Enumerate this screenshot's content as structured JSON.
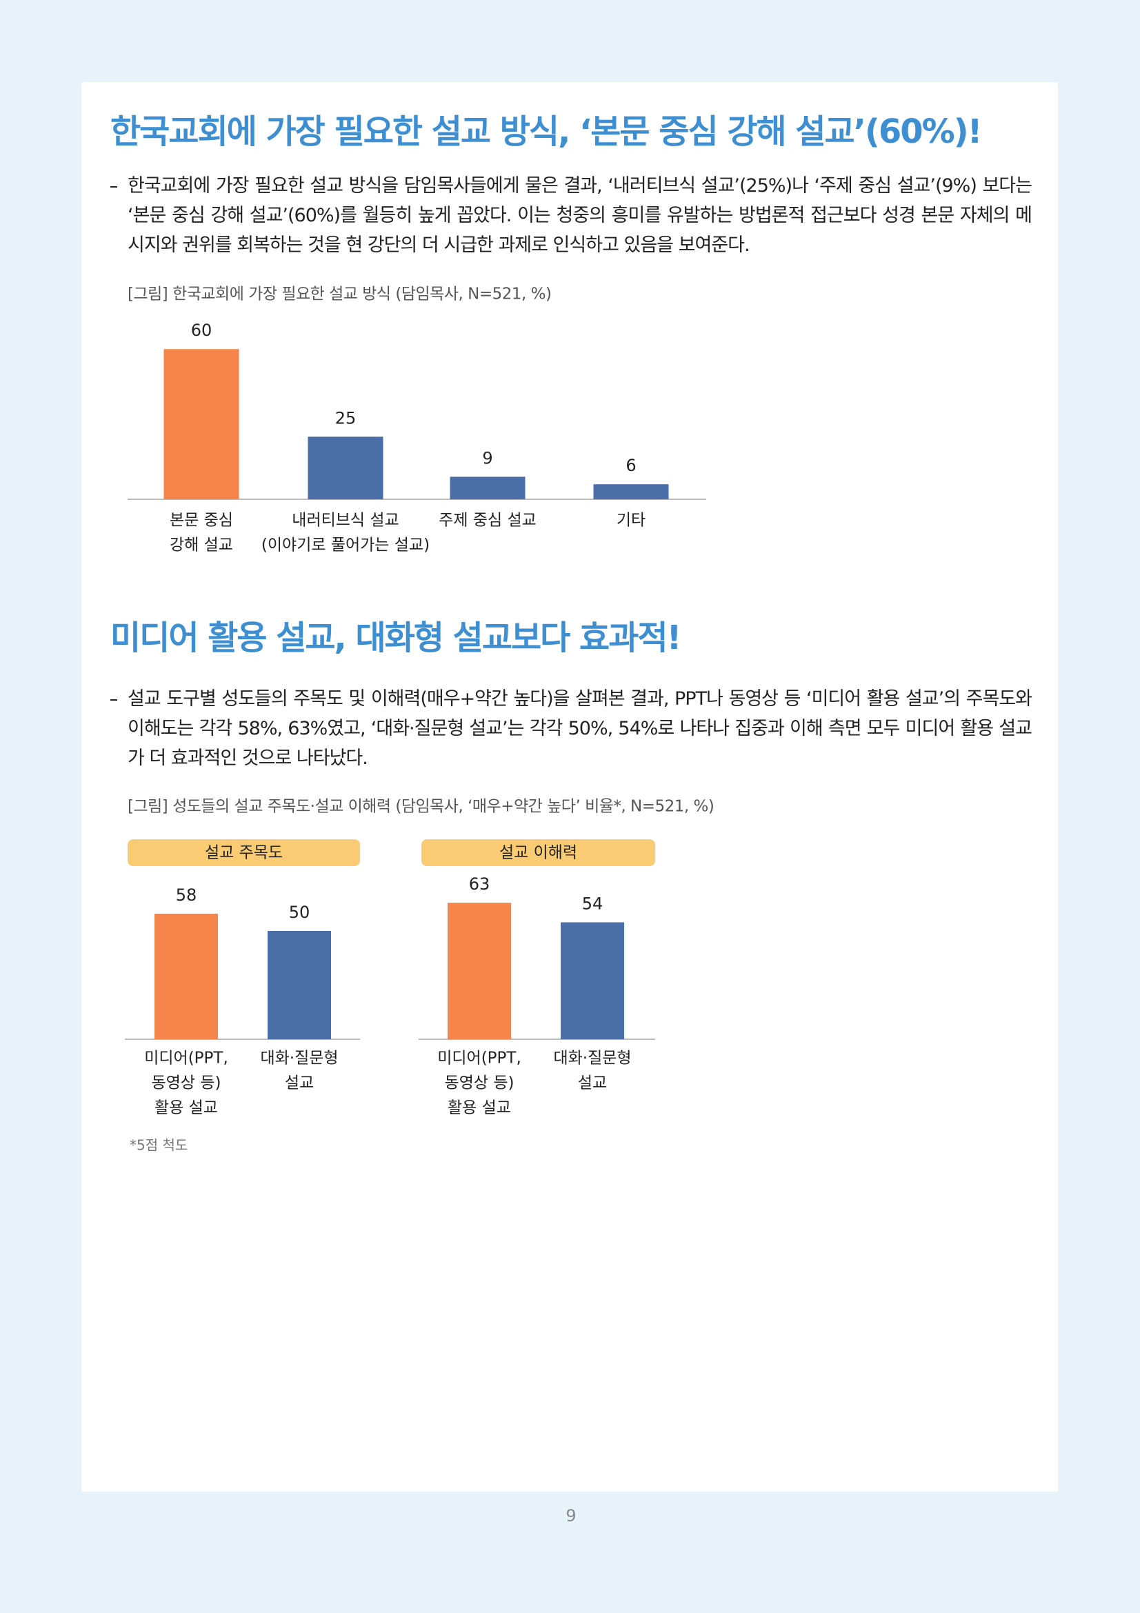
{
  "page": {
    "sections": [
      {
        "title": "한국교회에 가장 필요한 설교 방식, ‘본문 중심 강해 설교’(60%)!",
        "body": "한국교회에 가장 필요한 설교 방식을 담임목사들에게 물은 결과, ‘내러티브식 설교’(25%)나 ‘주제 중심 설교’(9%) 보다는 ‘본문 중심 강해 설교’(60%)를 월등히 높게 꼽았다. 이는 청중의 흥미를 유발하는 방법론적 접근보다 성경 본문 자체의 메시지와 권위를 회복하는 것을 현 강단의 더 시급한 과제로 인식하고 있음을 보여준다.",
        "figure": {
          "caption": "[그림] 한국교회에 가장 필요한 설교 방식 (담임목사, N=521, %)",
          "chart": {
            "type": "bar",
            "categories": [
              [
                "본문 중심",
                "강해 설교"
              ],
              [
                "내러티브식 설교",
                "(이야기로 풀어가는 설교)"
              ],
              [
                "주제 중심 설교"
              ],
              [
                "기타"
              ]
            ],
            "values": [
              60,
              25,
              9,
              6
            ],
            "colors": [
              "#f5854a",
              "#4a6ea8",
              "#4a6ea8",
              "#4a6ea8"
            ]
          }
        }
      },
      {
        "title": "미디어 활용 설교, 대화형 설교보다 효과적!",
        "body": "설교 도구별 성도들의 주목도 및 이해력(매우+약간 높다)을 살펴본 결과, PPT나 동영상 등 ‘미디어 활용 설교’의 주목도와 이해도는 각각 58%, 63%였고, ‘대화·질문형 설교’는 각각 50%, 54%로 나타나 집중과 이해 측면 모두 미디어 활용 설교가 더 효과적인 것으로 나타났다.",
        "figure": {
          "caption": "[그림] 성도들의 설교 주목도·설교 이해력 (담임목사, ‘매우+약간 높다’ 비율*,  N=521, %)",
          "charts": [
            {
              "type": "bar",
              "header": "설교 주목도",
              "categories": [
                [
                  "미디어(PPT,",
                  "동영상 등)",
                  "활용 설교"
                ],
                [
                  "대화·질문형",
                  "설교"
                ]
              ],
              "values": [
                58,
                50
              ],
              "colors": [
                "#f5854a",
                "#4a6ea8"
              ]
            },
            {
              "type": "bar",
              "header": "설교 이해력",
              "categories": [
                [
                  "미디어(PPT,",
                  "동영상 등)",
                  "활용 설교"
                ],
                [
                  "대화·질문형",
                  "설교"
                ]
              ],
              "values": [
                63,
                54
              ],
              "colors": [
                "#f5854a",
                "#4a6ea8"
              ]
            }
          ],
          "footnote": "*5점 척도"
        }
      }
    ],
    "page_number": "9"
  }
}
